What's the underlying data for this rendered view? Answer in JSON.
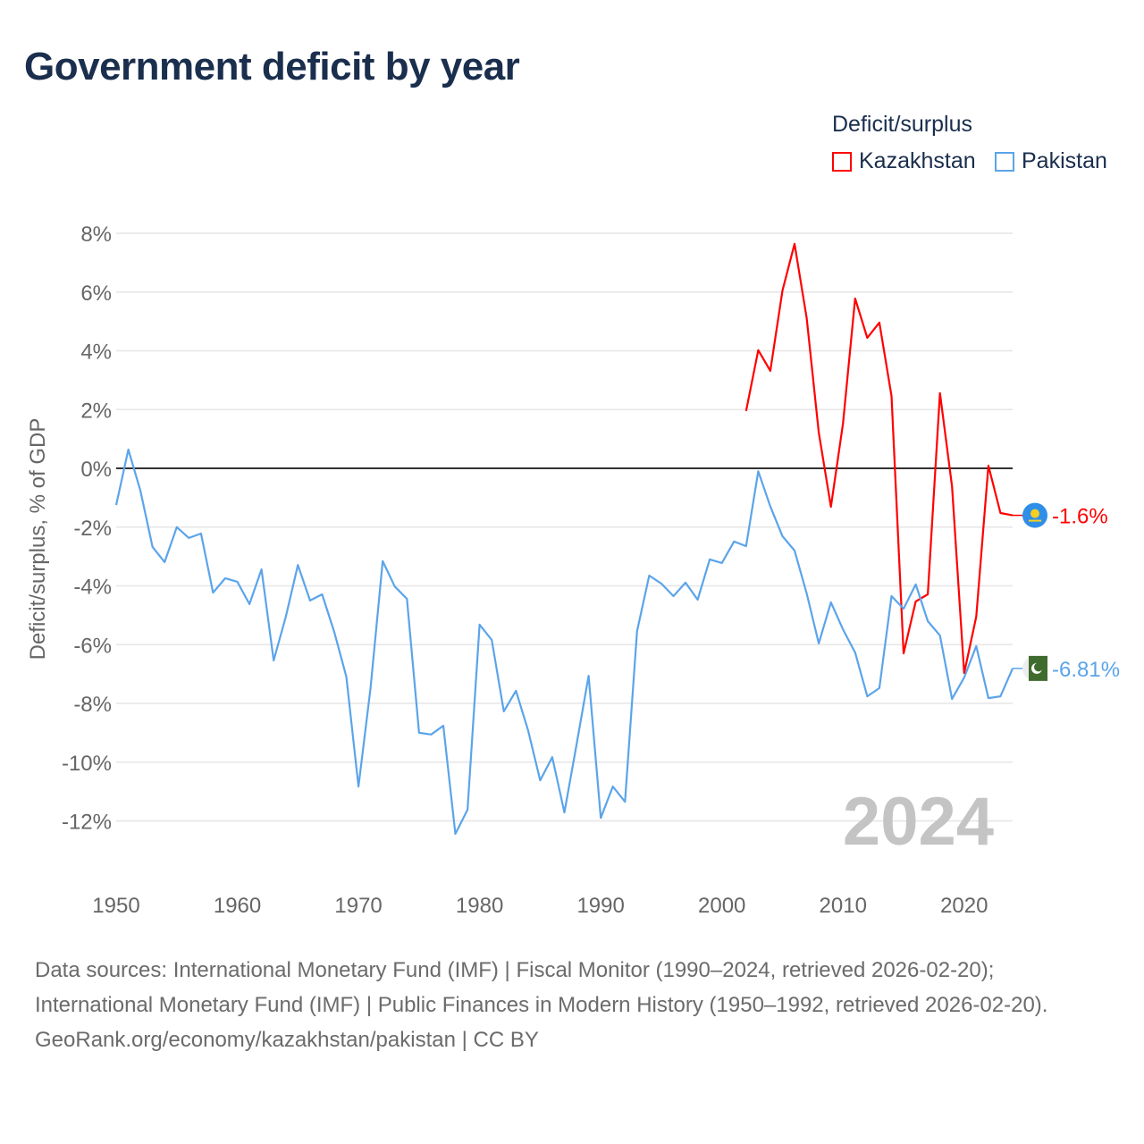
{
  "title": "Government deficit by year",
  "legend": {
    "title": "Deficit/surplus",
    "items": [
      {
        "label": "Kazakhstan",
        "color": "#ff0000"
      },
      {
        "label": "Pakistan",
        "color": "#5ba4ea"
      }
    ]
  },
  "chart_data": {
    "type": "line",
    "title": "Government deficit by year",
    "xlabel": "",
    "ylabel": "Deficit/surplus, % of GDP",
    "xlim": [
      1950,
      2024
    ],
    "ylim": [
      -14,
      8
    ],
    "xticks": [
      1950,
      1960,
      1970,
      1980,
      1990,
      2000,
      2010,
      2020
    ],
    "yticks": [
      8,
      6,
      4,
      2,
      0,
      -2,
      -4,
      -6,
      -8,
      -10,
      -12
    ],
    "ytick_labels": [
      "8%",
      "6%",
      "4%",
      "2%",
      "0%",
      "-2%",
      "-4%",
      "-6%",
      "-8%",
      "-10%",
      "-12%"
    ],
    "grid": true,
    "year_watermark": "2024",
    "series": [
      {
        "name": "Kazakhstan",
        "color": "#ff0000",
        "end_label": "-1.6%",
        "flag": "kazakhstan-flag",
        "x": [
          2002,
          2003,
          2004,
          2005,
          2006,
          2007,
          2008,
          2009,
          2010,
          2011,
          2012,
          2013,
          2014,
          2015,
          2016,
          2017,
          2018,
          2019,
          2020,
          2021,
          2022,
          2023,
          2024
        ],
        "values": [
          1.95,
          4.02,
          3.32,
          6.05,
          7.64,
          5.11,
          1.22,
          -1.31,
          1.52,
          5.78,
          4.44,
          4.96,
          2.46,
          -6.3,
          -4.53,
          -4.29,
          2.56,
          -0.61,
          -6.97,
          -5.05,
          0.09,
          -1.52,
          -1.6
        ]
      },
      {
        "name": "Pakistan",
        "color": "#5ba4ea",
        "end_label": "-6.81%",
        "flag": "pakistan-flag",
        "x": [
          1950,
          1951,
          1952,
          1953,
          1954,
          1955,
          1956,
          1957,
          1958,
          1959,
          1960,
          1961,
          1962,
          1963,
          1964,
          1965,
          1966,
          1967,
          1968,
          1969,
          1970,
          1971,
          1972,
          1973,
          1974,
          1975,
          1976,
          1977,
          1978,
          1979,
          1980,
          1981,
          1982,
          1983,
          1984,
          1985,
          1986,
          1987,
          1988,
          1989,
          1990,
          1991,
          1992,
          1993,
          1994,
          1995,
          1996,
          1997,
          1998,
          1999,
          2000,
          2001,
          2002,
          2003,
          2004,
          2005,
          2006,
          2007,
          2008,
          2009,
          2010,
          2011,
          2012,
          2013,
          2014,
          2015,
          2016,
          2017,
          2018,
          2019,
          2020,
          2021,
          2022,
          2023,
          2024
        ],
        "values": [
          -1.25,
          0.64,
          -0.76,
          -2.68,
          -3.19,
          -2.0,
          -2.37,
          -2.22,
          -4.23,
          -3.74,
          -3.86,
          -4.62,
          -3.44,
          -6.54,
          -5.05,
          -3.29,
          -4.5,
          -4.29,
          -5.57,
          -7.09,
          -10.83,
          -7.48,
          -3.16,
          -4.02,
          -4.44,
          -9.0,
          -9.06,
          -8.76,
          -12.44,
          -11.62,
          -5.32,
          -5.84,
          -8.27,
          -7.57,
          -8.91,
          -10.62,
          -9.83,
          -11.71,
          -9.4,
          -7.06,
          -11.9,
          -10.83,
          -11.35,
          -5.54,
          -3.65,
          -3.92,
          -4.35,
          -3.89,
          -4.47,
          -3.1,
          -3.22,
          -2.49,
          -2.65,
          -0.1,
          -1.3,
          -2.31,
          -2.8,
          -4.26,
          -5.96,
          -4.56,
          -5.48,
          -6.27,
          -7.76,
          -7.48,
          -4.35,
          -4.78,
          -3.95,
          -5.2,
          -5.69,
          -7.85,
          -7.12,
          -6.05,
          -7.82,
          -7.76,
          -6.81
        ]
      }
    ]
  },
  "footer": {
    "sources": "Data sources: International Monetary Fund (IMF) | Fiscal Monitor (1990–2024, retrieved 2026-02-20); International Monetary Fund (IMF) | Public Finances in Modern History (1950–1992, retrieved 2026-02-20).",
    "link": "GeoRank.org/economy/kazakhstan/pakistan",
    "license": "CC BY"
  }
}
